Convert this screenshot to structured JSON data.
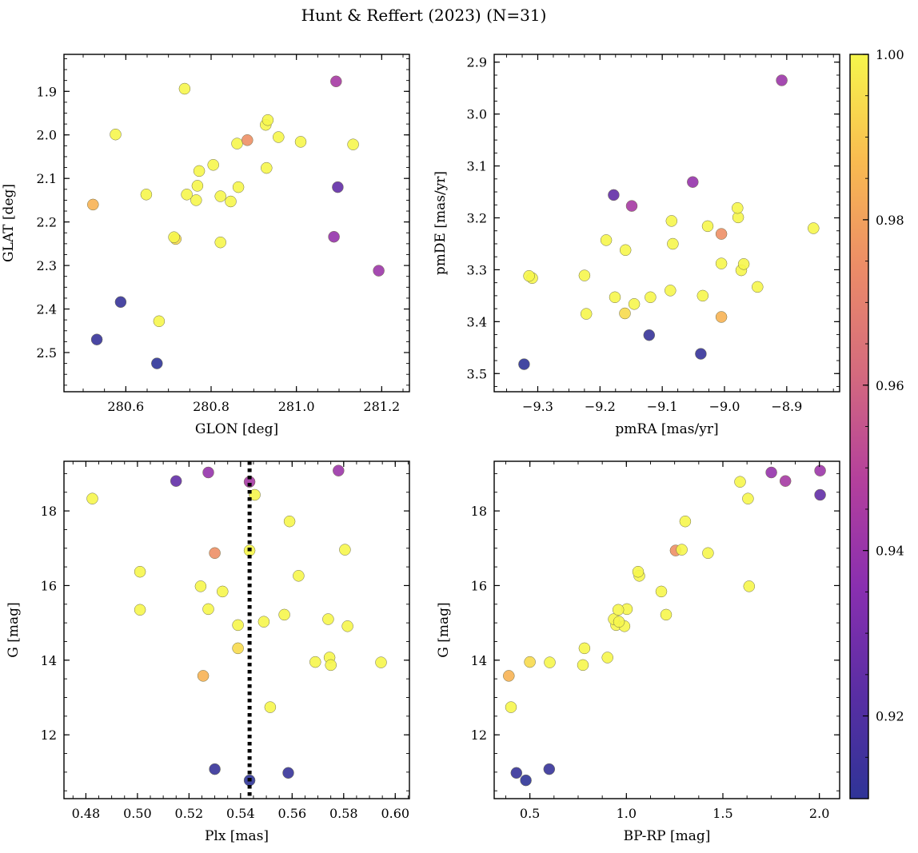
{
  "figure": {
    "title": "Hunt & Reffert (2023) (N=31)"
  },
  "colorbar": {
    "range": [
      0.91,
      1.0
    ],
    "tick_values": [
      0.92,
      0.94,
      0.96,
      0.98,
      1.0
    ],
    "tick_labels": [
      "0.92",
      "0.94",
      "0.96",
      "0.98",
      "1.00"
    ],
    "stops": [
      "#2f3497",
      "#5a2ea4",
      "#8a2fb0",
      "#b4409c",
      "#d46a7e",
      "#ec8c67",
      "#f9bb50",
      "#f6f64c"
    ]
  },
  "chart_data": [
    {
      "id": "p1",
      "type": "scatter",
      "xlabel": "GLON [deg]",
      "ylabel": "GLAT [deg]",
      "xlim": [
        280.455,
        281.265
      ],
      "ylim": [
        1.815,
        2.59
      ],
      "xticks": [
        280.6,
        280.8,
        281.0,
        281.2
      ],
      "xtick_labels": [
        "280.6",
        "280.8",
        "281.0",
        "281.2"
      ],
      "yticks": [
        1.9,
        2.0,
        2.1,
        2.2,
        2.3,
        2.4,
        2.5
      ],
      "ytick_labels": [
        "1.9",
        "2.0",
        "2.1",
        "2.2",
        "2.3",
        "2.4",
        "2.5"
      ],
      "x": [
        280.673,
        280.532,
        280.588,
        280.678,
        280.523,
        280.717,
        280.713,
        280.822,
        280.648,
        280.765,
        280.846,
        280.743,
        280.822,
        280.768,
        280.864,
        280.772,
        280.805,
        280.93,
        281.01,
        281.133,
        280.861,
        280.885,
        280.958,
        280.576,
        280.928,
        280.933,
        280.738,
        281.093,
        281.097,
        281.088,
        281.193
      ],
      "y": [
        2.525,
        2.47,
        2.384,
        2.428,
        2.16,
        2.239,
        2.235,
        2.247,
        2.137,
        2.15,
        2.153,
        2.137,
        2.141,
        2.117,
        2.12,
        2.083,
        2.069,
        2.076,
        2.016,
        2.022,
        2.02,
        2.012,
        2.005,
        1.999,
        1.977,
        1.966,
        1.894,
        1.877,
        2.12,
        2.234,
        2.312
      ]
    },
    {
      "id": "p2",
      "type": "scatter",
      "xlabel": "pmRA [mas/yr]",
      "ylabel": "pmDE [mas/yr]",
      "xlim": [
        -9.37,
        -8.815
      ],
      "ylim": [
        2.885,
        3.535
      ],
      "xticks": [
        -9.3,
        -9.2,
        -9.1,
        -9.0,
        -8.9
      ],
      "xtick_labels": [
        "−9.3",
        "−9.2",
        "−9.1",
        "−9.0",
        "−8.9"
      ],
      "yticks": [
        2.9,
        3.0,
        3.1,
        3.2,
        3.3,
        3.4,
        3.5
      ],
      "ytick_labels": [
        "2.9",
        "3.0",
        "3.1",
        "3.2",
        "3.3",
        "3.4",
        "3.5"
      ],
      "x": [
        -9.322,
        -9.038,
        -9.121,
        -9.222,
        -9.005,
        -9.16,
        -9.145,
        -9.176,
        -9.119,
        -9.087,
        -9.035,
        -8.947,
        -9.309,
        -9.314,
        -9.225,
        -8.973,
        -8.969,
        -9.005,
        -9.159,
        -9.083,
        -9.19,
        -9.005,
        -8.857,
        -9.027,
        -9.085,
        -8.978,
        -8.979,
        -9.149,
        -9.178,
        -9.051,
        -8.908
      ],
      "y": [
        3.482,
        3.462,
        3.426,
        3.385,
        3.391,
        3.384,
        3.366,
        3.353,
        3.353,
        3.34,
        3.35,
        3.333,
        3.316,
        3.312,
        3.311,
        3.301,
        3.289,
        3.288,
        3.262,
        3.25,
        3.243,
        3.231,
        3.22,
        3.216,
        3.206,
        3.199,
        3.181,
        3.177,
        3.156,
        3.131,
        2.935
      ]
    },
    {
      "id": "p3",
      "type": "scatter",
      "xlabel": "Plx [mas]",
      "ylabel": "G [mag]",
      "xlim": [
        0.4715,
        0.6055
      ],
      "ylim": [
        19.33,
        10.29
      ],
      "vline": 0.5435,
      "xticks": [
        0.48,
        0.5,
        0.52,
        0.54,
        0.56,
        0.58,
        0.6
      ],
      "xtick_labels": [
        "0.48",
        "0.50",
        "0.52",
        "0.54",
        "0.56",
        "0.58",
        "0.60"
      ],
      "yticks": [
        12,
        14,
        16,
        18
      ],
      "ytick_labels": [
        "12",
        "14",
        "16",
        "18"
      ],
      "x": [
        0.5435,
        0.5585,
        0.53,
        0.5515,
        0.5255,
        0.539,
        0.569,
        0.5745,
        0.575,
        0.5945,
        0.5815,
        0.539,
        0.549,
        0.557,
        0.574,
        0.501,
        0.5275,
        0.533,
        0.5245,
        0.501,
        0.5625,
        0.53,
        0.5435,
        0.5805,
        0.559,
        0.4825,
        0.5455,
        0.5435,
        0.515,
        0.5275,
        0.578
      ],
      "y": [
        10.78,
        10.98,
        11.08,
        12.74,
        13.58,
        14.32,
        13.95,
        14.07,
        13.87,
        13.94,
        14.91,
        14.94,
        15.03,
        15.22,
        15.1,
        15.35,
        15.37,
        15.84,
        15.98,
        16.37,
        16.26,
        16.87,
        16.94,
        16.96,
        17.72,
        18.33,
        18.43,
        18.78,
        18.8,
        19.03,
        19.08
      ]
    },
    {
      "id": "p4",
      "type": "scatter",
      "xlabel": "BP-RP [mag]",
      "ylabel": "G [mag]",
      "xlim": [
        0.315,
        2.105
      ],
      "ylim": [
        19.33,
        10.29
      ],
      "xticks": [
        0.5,
        1.0,
        1.5,
        2.0
      ],
      "xtick_labels": [
        "0.5",
        "1.0",
        "1.5",
        "2.0"
      ],
      "yticks": [
        12,
        14,
        16,
        18
      ],
      "ytick_labels": [
        "12",
        "14",
        "16",
        "18"
      ],
      "x": [
        0.479,
        0.43,
        0.6,
        0.402,
        0.391,
        0.5,
        0.603,
        0.775,
        0.783,
        0.902,
        0.947,
        0.99,
        0.935,
        0.962,
        1.003,
        1.206,
        0.958,
        1.181,
        1.636,
        1.067,
        1.061,
        1.255,
        1.287,
        1.423,
        1.305,
        1.63,
        1.589,
        1.824,
        2.004,
        1.751,
        2.004
      ],
      "y": [
        10.78,
        10.98,
        11.08,
        12.74,
        13.58,
        13.95,
        13.94,
        13.87,
        14.32,
        14.07,
        14.94,
        14.91,
        15.1,
        15.03,
        15.37,
        15.22,
        15.35,
        15.84,
        15.98,
        16.26,
        16.37,
        16.94,
        16.96,
        16.87,
        17.72,
        18.33,
        18.78,
        18.8,
        18.43,
        19.03,
        19.08
      ]
    }
  ],
  "membership_prob": [
    0.91,
    0.912,
    0.912,
    1.0,
    0.985,
    0.994,
    1.0,
    1.0,
    1.0,
    1.0,
    1.0,
    1.0,
    1.0,
    1.0,
    1.0,
    1.0,
    1.0,
    1.0,
    1.0,
    1.0,
    1.0,
    0.975,
    1.0,
    1.0,
    1.0,
    1.0,
    1.0,
    0.944,
    0.925,
    0.939,
    0.941
  ]
}
